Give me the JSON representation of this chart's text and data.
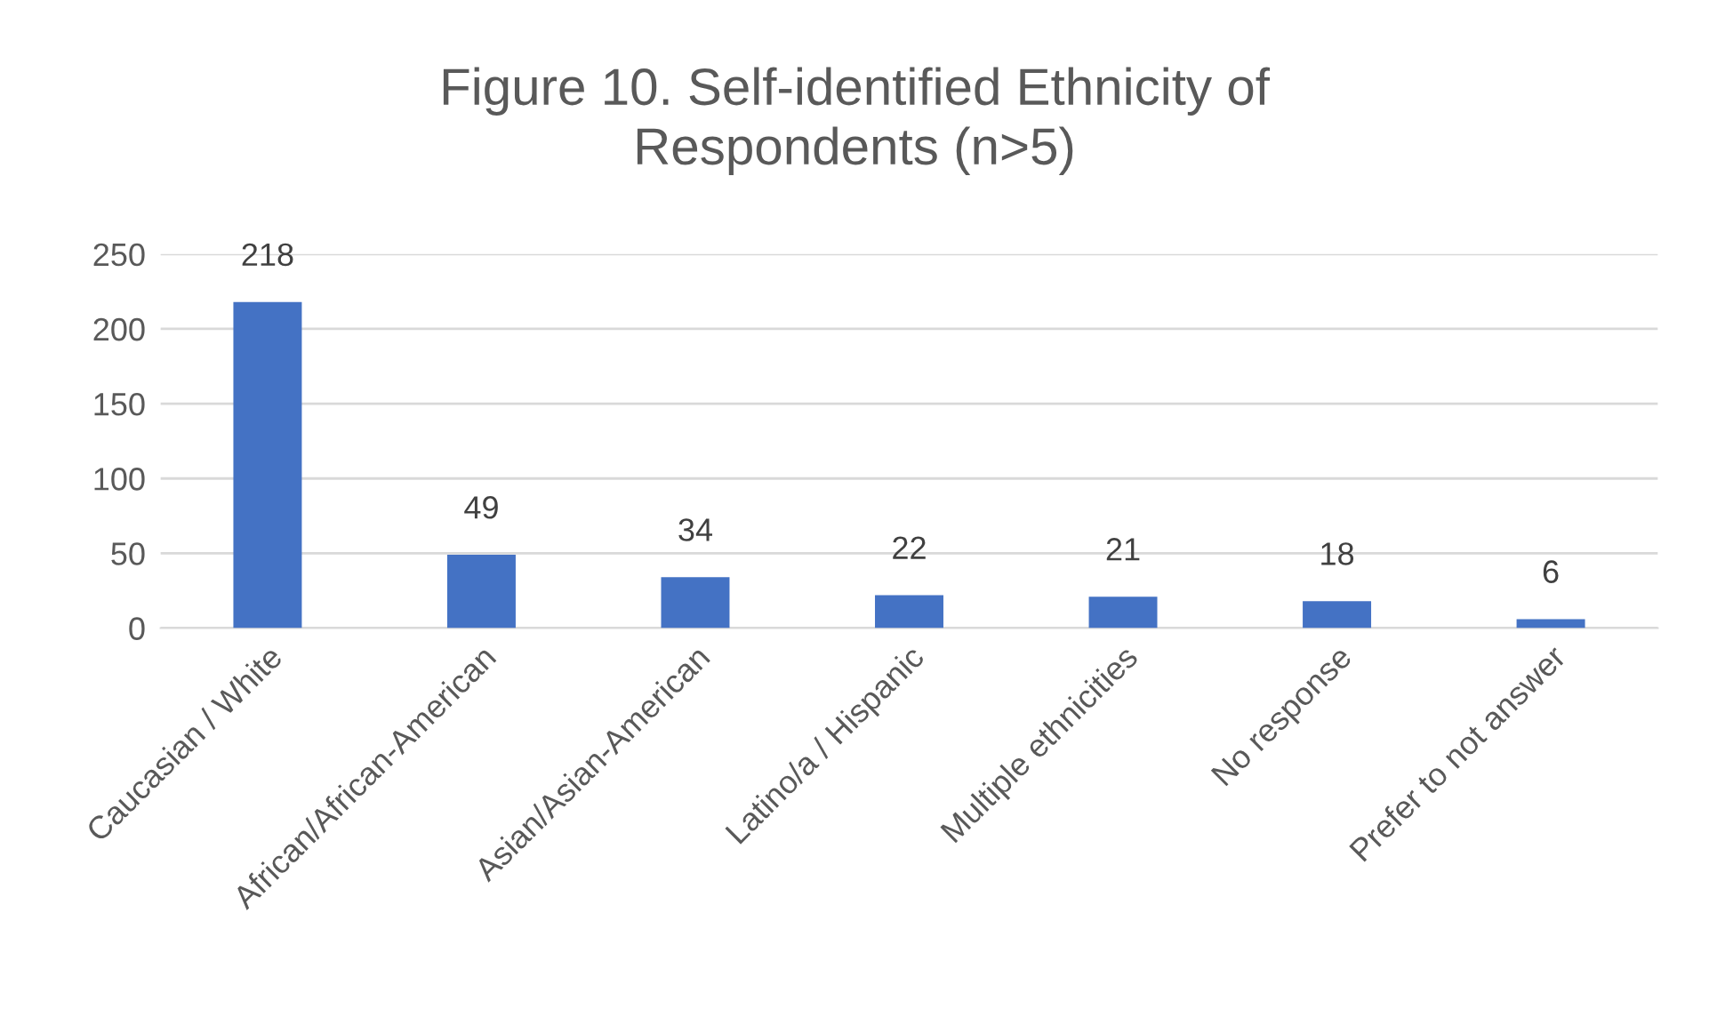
{
  "chart_data": {
    "type": "bar",
    "title": "Figure 10. Self-identified Ethnicity of\nRespondents (n>5)",
    "categories": [
      "Caucasian / White",
      "African/African-American",
      "Asian/Asian-American",
      "Latino/a / Hispanic",
      "Multiple ethnicities",
      "No response",
      "Prefer to not answer"
    ],
    "values": [
      218,
      49,
      34,
      22,
      21,
      18,
      6
    ],
    "color": "#4472c4",
    "ylim": [
      0,
      250
    ],
    "yticks": [
      0,
      50,
      100,
      150,
      200,
      250
    ],
    "grid": "y",
    "data_labels": true
  }
}
